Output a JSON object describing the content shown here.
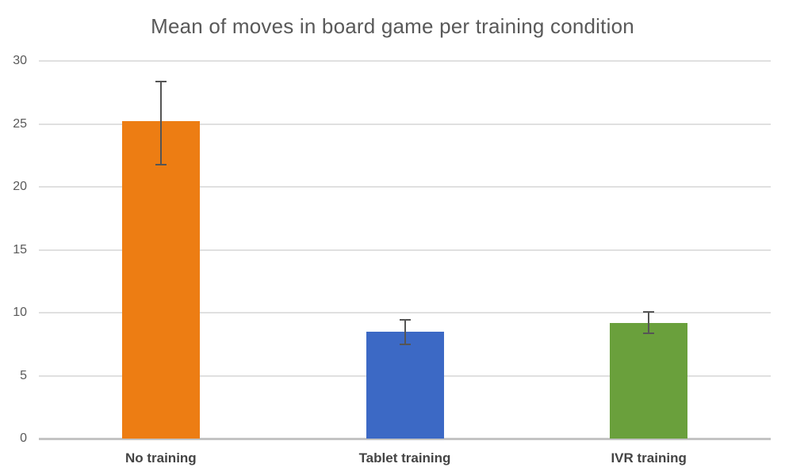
{
  "chart_data": {
    "type": "bar",
    "title": "Mean of moves in board game per training condition",
    "categories": [
      "No training",
      "Tablet training",
      "IVR training"
    ],
    "values": [
      25.2,
      8.5,
      9.2
    ],
    "error_low": [
      21.7,
      7.4,
      8.3
    ],
    "error_high": [
      28.4,
      9.5,
      10.1
    ],
    "bar_colors": [
      "#ED7D13",
      "#3C69C5",
      "#6AA03C"
    ],
    "xlabel": "",
    "ylabel": "",
    "ylim": [
      0,
      30
    ],
    "yticks": [
      0,
      5,
      10,
      15,
      20,
      25,
      30
    ],
    "grid": true,
    "legend": "none",
    "style_colors": {
      "title_text": "#595959",
      "tick_text": "#595959",
      "category_text": "#444444",
      "gridline": "#e0e0e0",
      "baseline": "#c3c3c3",
      "error_bar": "#555555",
      "background": "#ffffff"
    }
  }
}
